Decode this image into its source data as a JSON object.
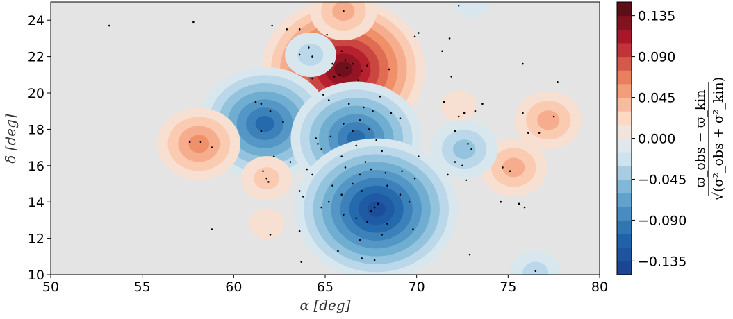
{
  "chart_data": {
    "type": "heatmap",
    "subtype": "filled-contour-with-scatter",
    "xlabel": "α [deg]",
    "ylabel": "δ [deg]",
    "xlim": [
      50,
      80
    ],
    "ylim": [
      10,
      25
    ],
    "x_ticks": [
      "50",
      "55",
      "60",
      "65",
      "70",
      "75",
      "80"
    ],
    "y_ticks": [
      "10",
      "12",
      "14",
      "16",
      "18",
      "20",
      "22",
      "24"
    ],
    "colorbar": {
      "label_lines": [
        "ϖ_obs − ϖ_kin",
        "√(σ²_obs + σ²_kin)"
      ],
      "range": [
        -0.15,
        0.15
      ],
      "ticks": [
        "0.135",
        "0.090",
        "0.045",
        "0.000",
        "−0.045",
        "−0.090",
        "−0.135"
      ],
      "tick_values": [
        0.135,
        0.09,
        0.045,
        0.0,
        -0.045,
        -0.09,
        -0.135
      ],
      "colormap": "diverging-red-blue",
      "negative_color": "#1a3f8f",
      "zero_color": "#e9e9e9",
      "positive_color": "#4b0c13"
    },
    "contour_features": [
      {
        "center": [
          66.0,
          21.3
        ],
        "value": 0.14
      },
      {
        "center": [
          66.0,
          24.5
        ],
        "value": 0.05
      },
      {
        "center": [
          61.7,
          18.3
        ],
        "value": -0.11
      },
      {
        "center": [
          66.7,
          17.5
        ],
        "value": -0.1
      },
      {
        "center": [
          67.8,
          13.6
        ],
        "value": -0.13
      },
      {
        "center": [
          58.1,
          17.2
        ],
        "value": 0.06
      },
      {
        "center": [
          61.8,
          15.3
        ],
        "value": 0.03
      },
      {
        "center": [
          61.8,
          12.8
        ],
        "value": 0.02
      },
      {
        "center": [
          75.3,
          15.9
        ],
        "value": 0.05
      },
      {
        "center": [
          77.2,
          18.5
        ],
        "value": 0.05
      },
      {
        "center": [
          72.3,
          19.3
        ],
        "value": 0.02
      },
      {
        "center": [
          72.6,
          16.9
        ],
        "value": -0.04
      },
      {
        "center": [
          73.0,
          25.0
        ],
        "value": -0.02
      },
      {
        "center": [
          76.5,
          10.1
        ],
        "value": -0.03
      },
      {
        "center": [
          64.2,
          22.1
        ],
        "value": -0.03
      }
    ],
    "scatter_points": [
      [
        53.2,
        23.7
      ],
      [
        57.8,
        23.9
      ],
      [
        62.1,
        23.7
      ],
      [
        62.9,
        23.5
      ],
      [
        63.6,
        23.5
      ],
      [
        66.0,
        24.5
      ],
      [
        72.3,
        24.8
      ],
      [
        71.8,
        23.0
      ],
      [
        69.9,
        23.1
      ],
      [
        70.1,
        23.3
      ],
      [
        64.1,
        22.5
      ],
      [
        65.1,
        23.2
      ],
      [
        64.3,
        22.0
      ],
      [
        63.6,
        22.1
      ],
      [
        65.4,
        21.6
      ],
      [
        66.2,
        21.4
      ],
      [
        65.8,
        21.0
      ],
      [
        66.5,
        21.6
      ],
      [
        67.0,
        21.2
      ],
      [
        65.5,
        20.9
      ],
      [
        66.8,
        20.7
      ],
      [
        66.1,
        21.8
      ],
      [
        67.3,
        21.5
      ],
      [
        65.9,
        22.3
      ],
      [
        68.5,
        21.3
      ],
      [
        64.3,
        20.8
      ],
      [
        64.9,
        19.9
      ],
      [
        65.2,
        19.6
      ],
      [
        66.3,
        19.4
      ],
      [
        67.1,
        19.2
      ],
      [
        68.0,
        19.8
      ],
      [
        67.6,
        19.0
      ],
      [
        66.9,
        18.5
      ],
      [
        68.6,
        18.9
      ],
      [
        69.1,
        18.6
      ],
      [
        67.4,
        18.0
      ],
      [
        66.5,
        17.9
      ],
      [
        66.0,
        18.3
      ],
      [
        67.8,
        17.4
      ],
      [
        66.7,
        17.1
      ],
      [
        65.3,
        17.6
      ],
      [
        64.8,
        16.9
      ],
      [
        65.9,
        16.5
      ],
      [
        64.5,
        17.5
      ],
      [
        67.2,
        16.2
      ],
      [
        68.1,
        16.8
      ],
      [
        66.1,
        15.9
      ],
      [
        66.9,
        15.5
      ],
      [
        67.5,
        15.8
      ],
      [
        68.3,
        15.6
      ],
      [
        69.2,
        15.7
      ],
      [
        69.9,
        15.3
      ],
      [
        65.4,
        14.9
      ],
      [
        65.9,
        14.4
      ],
      [
        66.5,
        15.0
      ],
      [
        67.0,
        14.6
      ],
      [
        68.4,
        14.9
      ],
      [
        69.1,
        14.4
      ],
      [
        65.2,
        14.0
      ],
      [
        64.8,
        13.7
      ],
      [
        66.0,
        13.3
      ],
      [
        66.7,
        13.1
      ],
      [
        67.5,
        13.5
      ],
      [
        67.9,
        13.9
      ],
      [
        67.3,
        12.9
      ],
      [
        68.4,
        12.8
      ],
      [
        69.8,
        12.5
      ],
      [
        68.1,
        12.2
      ],
      [
        69.6,
        14.0
      ],
      [
        67.7,
        13.7
      ],
      [
        66.9,
        11.9
      ],
      [
        65.7,
        11.3
      ],
      [
        67.0,
        10.9
      ],
      [
        67.7,
        10.8
      ],
      [
        63.6,
        12.4
      ],
      [
        62.0,
        12.2
      ],
      [
        58.8,
        12.5
      ],
      [
        63.7,
        10.7
      ],
      [
        63.6,
        14.6
      ],
      [
        63.8,
        14.3
      ],
      [
        64.0,
        15.8
      ],
      [
        64.3,
        15.5
      ],
      [
        61.6,
        15.7
      ],
      [
        61.8,
        15.3
      ],
      [
        61.9,
        15.1
      ],
      [
        61.2,
        19.5
      ],
      [
        61.5,
        19.4
      ],
      [
        62.0,
        19.0
      ],
      [
        61.5,
        17.9
      ],
      [
        62.7,
        18.4
      ],
      [
        57.6,
        17.3
      ],
      [
        58.2,
        17.3
      ],
      [
        58.8,
        17.0
      ],
      [
        62.2,
        16.5
      ],
      [
        63.1,
        16.2
      ],
      [
        64.6,
        17.2
      ],
      [
        70.1,
        16.5
      ],
      [
        71.7,
        15.5
      ],
      [
        72.1,
        16.2
      ],
      [
        72.5,
        16.0
      ],
      [
        72.7,
        15.2
      ],
      [
        72.3,
        18.7
      ],
      [
        72.6,
        18.9
      ],
      [
        73.2,
        19.0
      ],
      [
        73.6,
        19.4
      ],
      [
        71.5,
        19.5
      ],
      [
        72.8,
        17.2
      ],
      [
        72.1,
        17.9
      ],
      [
        73.0,
        16.9
      ],
      [
        71.9,
        20.9
      ],
      [
        74.7,
        15.9
      ],
      [
        75.1,
        15.7
      ],
      [
        75.6,
        13.9
      ],
      [
        75.9,
        13.7
      ],
      [
        74.6,
        14.0
      ],
      [
        75.8,
        18.9
      ],
      [
        76.1,
        17.8
      ],
      [
        76.7,
        17.8
      ],
      [
        77.5,
        18.7
      ],
      [
        77.7,
        20.6
      ],
      [
        75.8,
        21.6
      ],
      [
        72.9,
        11.1
      ],
      [
        71.4,
        22.3
      ],
      [
        76.5,
        10.2
      ]
    ]
  }
}
